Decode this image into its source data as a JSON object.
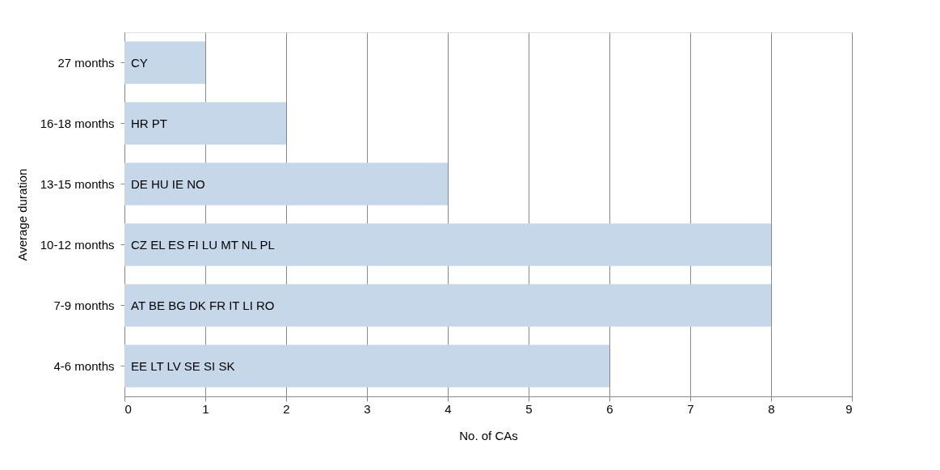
{
  "chart_data": {
    "type": "bar",
    "orientation": "horizontal",
    "xlabel": "No. of CAs",
    "ylabel": "Average duration",
    "categories": [
      "27 months",
      "16-18 months",
      "13-15 months",
      "10-12 months",
      "7-9 months",
      "4-6 months"
    ],
    "values": [
      1,
      2,
      4,
      8,
      8,
      6
    ],
    "value_labels": [
      "CY",
      "HR PT",
      "DE HU IE NO",
      "CZ EL ES FI LU MT NL PL",
      "AT BE BG DK FR IT LI RO",
      "EE LT LV SE SI SK"
    ],
    "color": "#c6d7ea",
    "xlim": [
      0,
      9
    ],
    "xticks": [
      0,
      1,
      2,
      3,
      4,
      5,
      6,
      7,
      8,
      9
    ],
    "grid": "x"
  }
}
